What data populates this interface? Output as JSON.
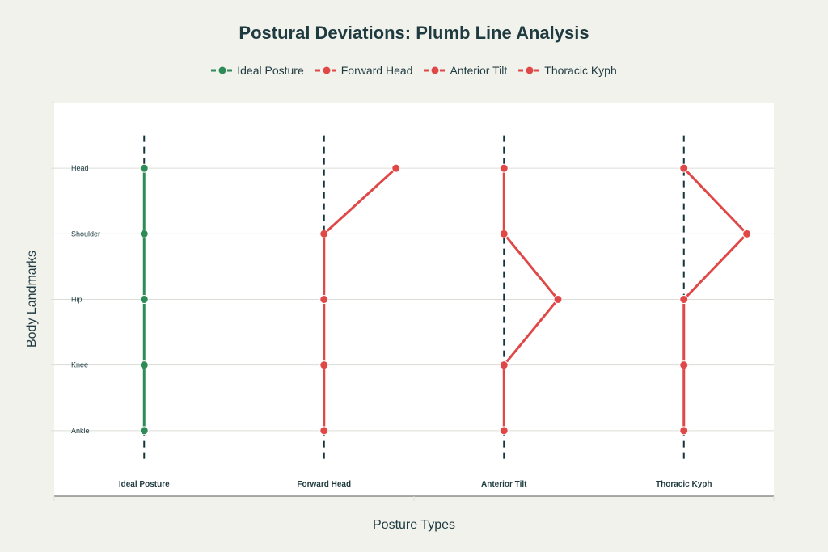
{
  "chart_data": {
    "type": "line",
    "title": "Postural Deviations: Plumb Line Analysis",
    "xlabel": "Posture Types",
    "ylabel": "Body Landmarks",
    "categories": [
      "Ideal Posture",
      "Forward Head",
      "Anterior Tilt",
      "Thoracic Kyph"
    ],
    "landmarks": [
      "Head",
      "Shoulder",
      "Hip",
      "Knee",
      "Ankle"
    ],
    "landmark_values": [
      5,
      4,
      3,
      2,
      1
    ],
    "xlim": [
      -0.5,
      3.5
    ],
    "ylim": [
      0,
      6
    ],
    "plumb_line_range": [
      0.5,
      5.5
    ],
    "legend_placement": "top-center",
    "series": [
      {
        "name": "Ideal Posture",
        "color": "#2e8b57",
        "x_offsets": [
          0,
          0,
          0,
          0,
          0
        ]
      },
      {
        "name": "Forward Head",
        "color": "#e04848",
        "x_offsets": [
          0.4,
          0,
          0,
          0,
          0
        ]
      },
      {
        "name": "Anterior Tilt",
        "color": "#e04848",
        "x_offsets": [
          0,
          0,
          0.3,
          0,
          0
        ]
      },
      {
        "name": "Thoracic Kyph",
        "color": "#e04848",
        "x_offsets": [
          0,
          0.35,
          0,
          0,
          0
        ]
      }
    ],
    "plumb_line_color": "#13343b"
  }
}
